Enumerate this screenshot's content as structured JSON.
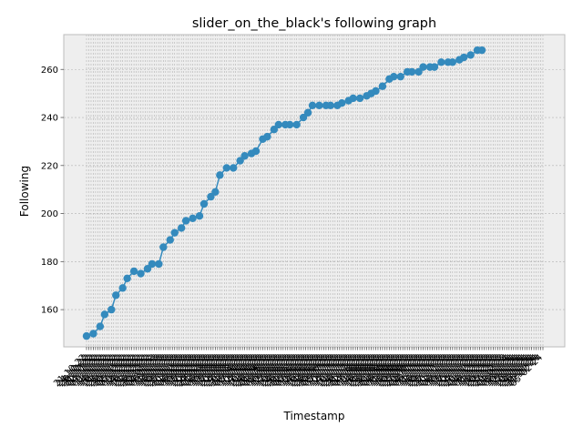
{
  "chart_data": {
    "type": "line",
    "title": "slider_on_the_black's following graph",
    "xlabel": "Timestamp",
    "ylabel": "Following",
    "ylim": [
      144.5,
      274.5
    ],
    "yticks": [
      160,
      180,
      200,
      220,
      240,
      260
    ],
    "grid": true,
    "colors": {
      "series": "#348abd",
      "plot_bg": "#eeeeee",
      "grid": "#b2b2b2",
      "spine": "#bcbcbc"
    },
    "categories": [
      "21-10-22",
      "24-10-22",
      "26-10-22",
      "28-10-22",
      "31-10-22",
      "02-11-22",
      "04-11-22",
      "07-11-22",
      "09-11-22",
      "11-11-22",
      "14-11-22",
      "16-11-22",
      "18-11-22",
      "21-11-22",
      "23-11-22",
      "25-11-22",
      "28-11-22",
      "30-11-22",
      "02-12-22",
      "05-12-22",
      "07-12-22",
      "09-12-22",
      "12-12-22",
      "14-12-22",
      "16-12-22",
      "19-12-22",
      "21-12-22",
      "23-12-22",
      "26-12-22",
      "28-12-22",
      "30-12-22",
      "02-01-23",
      "04-01-23",
      "06-01-23",
      "09-01-23",
      "11-01-23",
      "13-01-23",
      "16-01-23",
      "18-01-23",
      "20-01-23",
      "23-01-23",
      "25-01-23",
      "27-01-23",
      "30-01-23",
      "01-02-23",
      "03-02-23",
      "06-02-23",
      "08-02-23",
      "10-02-23",
      "13-02-23",
      "15-02-23",
      "17-02-23",
      "20-02-23",
      "22-02-23",
      "24-02-23",
      "27-02-23",
      "01-03-23",
      "03-03-23",
      "06-03-23",
      "08-03-23",
      "10-03-23",
      "13-03-23",
      "15-03-23",
      "17-03-23",
      "20-03-23",
      "22-03-23",
      "24-03-23",
      "27-03-23",
      "29-03-23",
      "31-03-23",
      "03-04-23",
      "05-04-23",
      "07-04-23",
      "10-04-23",
      "12-04-23",
      "14-04-23",
      "17-04-23",
      "19-04-23",
      "21-04-23",
      "24-04-23",
      "26-04-23",
      "28-04-23",
      "01-05-23",
      "03-05-23",
      "05-05-23",
      "08-05-23",
      "10-05-23",
      "12-05-23",
      "15-05-23",
      "17-05-23",
      "19-05-23",
      "22-05-23",
      "24-05-23",
      "26-05-23",
      "29-05-23",
      "31-05-23",
      "02-06-23",
      "05-06-23",
      "07-06-23",
      "09-06-23",
      "12-06-23",
      "14-06-23",
      "16-06-23",
      "19-06-23",
      "21-06-23",
      "23-06-23",
      "26-06-23",
      "28-06-23",
      "30-06-23",
      "03-07-23",
      "05-07-23",
      "07-07-23",
      "10-07-23",
      "12-07-23",
      "14-07-23",
      "17-07-23",
      "19-07-23",
      "21-07-23",
      "24-07-23",
      "26-07-23",
      "28-07-23",
      "31-07-23",
      "02-08-23",
      "04-08-23",
      "07-08-23",
      "09-08-23",
      "11-08-23",
      "14-08-23",
      "16-08-23",
      "18-08-23",
      "21-08-23",
      "23-08-23",
      "25-08-23",
      "28-08-23",
      "30-08-23",
      "01-09-23",
      "04-09-23",
      "06-09-23",
      "08-09-23",
      "11-09-23",
      "13-09-23",
      "15-09-23",
      "18-09-23",
      "20-09-23",
      "22-09-23",
      "25-09-23",
      "27-09-23",
      "29-09-23",
      "02-10-23",
      "04-10-23",
      "06-10-23",
      "09-10-23",
      "11-10-23",
      "13-10-23",
      "16-10-23",
      "18-10-23",
      "20-10-23",
      "23-10-23",
      "25-10-23",
      "27-10-23",
      "30-10-23",
      "01-11-23",
      "03-11-23",
      "06-11-23",
      "08-11-23",
      "10-11-23",
      "13-11-23",
      "15-11-23",
      "17-11-23",
      "20-11-23",
      "22-11-23",
      "24-11-23",
      "27-11-23",
      "29-11-23",
      "01-12-23",
      "04-12-23",
      "06-12-23",
      "08-12-23",
      "11-12-23",
      "13-12-23",
      "15-12-23",
      "18-12-23",
      "20-12-23",
      "22-12-23",
      "25-12-23",
      "27-12-23",
      "29-12-23",
      "01-01-24",
      "03-01-24",
      "05-01-24",
      "08-01-24",
      "10-01-24",
      "12-01-24",
      "15-01-24",
      "17-01-24",
      "19-01-24",
      "22-01-24",
      "24-01-24",
      "26-01-24",
      "29-01-24",
      "31-01-24",
      "02-02-24",
      "05-02-24"
    ],
    "points": [
      [
        "21-10-22",
        149
      ],
      [
        "28-10-22",
        150
      ],
      [
        "04-11-22",
        153
      ],
      [
        "09-11-22",
        158
      ],
      [
        "16-11-22",
        160
      ],
      [
        "21-11-22",
        166
      ],
      [
        "28-11-22",
        169
      ],
      [
        "02-12-22",
        173
      ],
      [
        "09-12-22",
        176
      ],
      [
        "16-12-22",
        175
      ],
      [
        "23-12-22",
        177
      ],
      [
        "28-12-22",
        179
      ],
      [
        "04-01-23",
        179
      ],
      [
        "09-01-23",
        186
      ],
      [
        "16-01-23",
        189
      ],
      [
        "20-01-23",
        192
      ],
      [
        "27-01-23",
        194
      ],
      [
        "01-02-23",
        197
      ],
      [
        "08-02-23",
        198
      ],
      [
        "15-02-23",
        199
      ],
      [
        "20-02-23",
        204
      ],
      [
        "27-02-23",
        207
      ],
      [
        "03-03-23",
        209
      ],
      [
        "08-03-23",
        216
      ],
      [
        "15-03-23",
        219
      ],
      [
        "22-03-23",
        219
      ],
      [
        "29-03-23",
        222
      ],
      [
        "03-04-23",
        224
      ],
      [
        "10-04-23",
        225
      ],
      [
        "14-04-23",
        226
      ],
      [
        "21-04-23",
        231
      ],
      [
        "26-04-23",
        232
      ],
      [
        "03-05-23",
        235
      ],
      [
        "08-05-23",
        237
      ],
      [
        "15-05-23",
        237
      ],
      [
        "19-05-23",
        237
      ],
      [
        "26-05-23",
        237
      ],
      [
        "02-06-23",
        240
      ],
      [
        "07-06-23",
        242
      ],
      [
        "12-06-23",
        245
      ],
      [
        "19-06-23",
        245
      ],
      [
        "26-06-23",
        245
      ],
      [
        "30-06-23",
        245
      ],
      [
        "07-07-23",
        245
      ],
      [
        "12-07-23",
        246
      ],
      [
        "19-07-23",
        247
      ],
      [
        "24-07-23",
        248
      ],
      [
        "31-07-23",
        248
      ],
      [
        "07-08-23",
        249
      ],
      [
        "11-08-23",
        250
      ],
      [
        "16-08-23",
        251
      ],
      [
        "23-08-23",
        253
      ],
      [
        "30-08-23",
        256
      ],
      [
        "04-09-23",
        257
      ],
      [
        "11-09-23",
        257
      ],
      [
        "18-09-23",
        259
      ],
      [
        "22-09-23",
        259
      ],
      [
        "29-09-23",
        259
      ],
      [
        "04-10-23",
        261
      ],
      [
        "11-10-23",
        261
      ],
      [
        "16-10-23",
        261
      ],
      [
        "23-10-23",
        263
      ],
      [
        "30-10-23",
        263
      ],
      [
        "03-11-23",
        263
      ],
      [
        "10-11-23",
        264
      ],
      [
        "15-11-23",
        265
      ],
      [
        "22-11-23",
        266
      ],
      [
        "29-11-23",
        268
      ],
      [
        "04-12-23",
        268
      ]
    ]
  }
}
